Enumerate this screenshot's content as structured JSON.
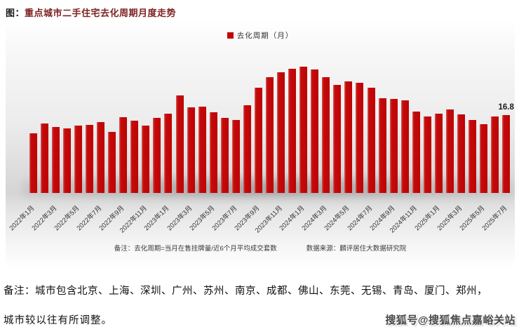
{
  "page": {
    "note_line1": "备注：城市包含北京、上海、深圳、广州、苏州、南京、成都、佛山、东莞、无锡、青岛、厦门、郑州，",
    "note_line2": "城市较以往有所调整。",
    "watermark": "搜狐号@搜狐焦点嘉峪关站"
  },
  "chart": {
    "title_prefix": "图：",
    "title_main": "重点城市二手住宅去化周期月度走势",
    "legend_label": "去化周期（月）",
    "footnote_left": "备注：去化周期=当月在售挂牌量/近6个月平均成交套数",
    "footnote_right": "数据来源：麟评居住大数据研究院"
  },
  "chart_data": {
    "type": "bar",
    "title": "重点城市二手住宅去化周期月度走势",
    "legend": [
      "去化周期（月）"
    ],
    "legend_position": "top-center",
    "grid": false,
    "ylabel": "去化周期（月）",
    "ylim": [
      0,
      30
    ],
    "bar_color": "#c00606",
    "x_tick_step": 2,
    "x": [
      "2022年1月",
      "2022年2月",
      "2022年3月",
      "2022年4月",
      "2022年5月",
      "2022年6月",
      "2022年7月",
      "2022年8月",
      "2022年9月",
      "2022年10月",
      "2022年11月",
      "2022年12月",
      "2023年1月",
      "2023年2月",
      "2023年3月",
      "2023年4月",
      "2023年5月",
      "2023年6月",
      "2023年7月",
      "2023年8月",
      "2023年9月",
      "2023年10月",
      "2023年11月",
      "2023年12月",
      "2024年1月",
      "2024年2月",
      "2024年3月",
      "2024年4月",
      "2024年5月",
      "2024年6月",
      "2024年7月",
      "2024年8月",
      "2024年9月",
      "2024年10月",
      "2024年11月",
      "2024年12月",
      "2025年1月",
      "2025年2月",
      "2025年3月",
      "2025年4月",
      "2025年5月",
      "2025年6月",
      "2025年7月"
    ],
    "values": [
      12.9,
      15.0,
      14.3,
      13.9,
      14.6,
      14.8,
      15.3,
      13.2,
      16.4,
      15.6,
      14.6,
      16.3,
      17.2,
      21.1,
      18.5,
      18.7,
      17.4,
      16.3,
      15.8,
      18.9,
      22.8,
      25.0,
      26.1,
      26.9,
      27.3,
      26.7,
      25.0,
      23.4,
      24.1,
      23.9,
      22.7,
      20.5,
      20.4,
      20.0,
      17.6,
      16.6,
      17.2,
      18.1,
      17.0,
      15.8,
      14.9,
      16.6,
      16.8
    ],
    "annotation": {
      "index": 42,
      "text": "16.8"
    }
  }
}
